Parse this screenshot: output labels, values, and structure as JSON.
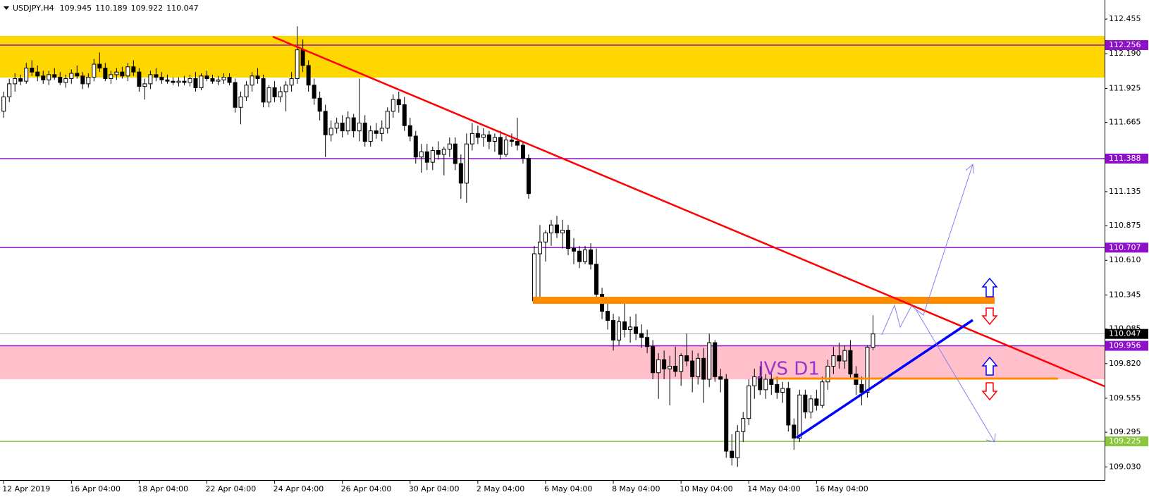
{
  "chart_data": {
    "type": "candlestick",
    "symbol": "USDJPY,H4",
    "ylim": [
      108.929,
      112.601
    ],
    "yticks": [
      {
        "value": 112.455,
        "label": "112.455"
      },
      {
        "value": 112.19,
        "label": "112.190"
      },
      {
        "value": 111.925,
        "label": "111.925"
      },
      {
        "value": 111.665,
        "label": "111.665"
      },
      {
        "value": 111.135,
        "label": "111.135"
      },
      {
        "value": 110.875,
        "label": "110.875"
      },
      {
        "value": 110.61,
        "label": "110.610"
      },
      {
        "value": 110.345,
        "label": "110.345"
      },
      {
        "value": 110.085,
        "label": "110.085"
      },
      {
        "value": 109.82,
        "label": "109.820"
      },
      {
        "value": 109.555,
        "label": "109.555"
      },
      {
        "value": 109.295,
        "label": "109.295"
      },
      {
        "value": 109.03,
        "label": "109.030"
      }
    ],
    "bull_color": "#ffffff",
    "bear_color": "#000000",
    "outline_color": "#000000",
    "levels": [
      {
        "value": 112.256,
        "color": "#8e10c8"
      },
      {
        "value": 111.388,
        "color": "#8e10c8"
      },
      {
        "value": 110.707,
        "color": "#8e10c8"
      },
      {
        "value": 109.956,
        "color": "#8e10c8"
      },
      {
        "value": 109.225,
        "color": "#8cc63f"
      },
      {
        "value": 110.047,
        "color": "#000000",
        "line_color": "#9fb3c8"
      }
    ],
    "annotation": "JVS D1",
    "categories": [
      "12 Apr 2019",
      null,
      null,
      null,
      null,
      null,
      null,
      null,
      null,
      null,
      null,
      null,
      "16 Apr 04:00",
      null,
      null,
      null,
      null,
      null,
      null,
      null,
      null,
      null,
      null,
      null,
      "18 Apr 04:00",
      null,
      null,
      null,
      null,
      null,
      null,
      null,
      null,
      null,
      null,
      null,
      "22 Apr 04:00",
      null,
      null,
      null,
      null,
      null,
      null,
      null,
      null,
      null,
      null,
      null,
      "24 Apr 04:00",
      null,
      null,
      null,
      null,
      null,
      null,
      null,
      null,
      null,
      null,
      null,
      "26 Apr 04:00",
      null,
      null,
      null,
      null,
      null,
      null,
      null,
      null,
      null,
      null,
      null,
      "30 Apr 04:00",
      null,
      null,
      null,
      null,
      null,
      null,
      null,
      null,
      null,
      null,
      null,
      "2 May 04:00",
      null,
      null,
      null,
      null,
      null,
      null,
      null,
      null,
      null,
      null,
      null,
      "6 May 04:00",
      null,
      null,
      null,
      null,
      null,
      null,
      null,
      null,
      null,
      null,
      null,
      "8 May 04:00",
      null,
      null,
      null,
      null,
      null,
      null,
      null,
      null,
      null,
      null,
      null,
      "10 May 04:00",
      null,
      null,
      null,
      null,
      null,
      null,
      null,
      null,
      null,
      null,
      null,
      "14 May 04:00",
      null,
      null,
      null,
      null,
      null,
      null,
      null,
      null,
      null,
      null,
      null,
      "16 May 04:00",
      null,
      null,
      null,
      null,
      null,
      null,
      null,
      null,
      null,
      null
    ],
    "candles": [
      [
        111.75,
        111.9,
        111.7,
        111.86
      ],
      [
        111.86,
        112.0,
        111.82,
        111.96
      ],
      [
        111.96,
        112.04,
        111.9,
        112.0
      ],
      [
        112.0,
        112.03,
        111.95,
        111.98
      ],
      [
        111.98,
        112.12,
        111.96,
        112.08
      ],
      [
        112.08,
        112.14,
        112.02,
        112.05
      ],
      [
        112.05,
        112.1,
        111.98,
        112.02
      ],
      [
        112.02,
        112.06,
        111.96,
        111.99
      ],
      [
        111.99,
        112.06,
        111.95,
        112.03
      ],
      [
        112.03,
        112.08,
        111.99,
        112.01
      ],
      [
        112.01,
        112.05,
        111.95,
        111.97
      ],
      [
        111.97,
        112.03,
        111.93,
        112.0
      ],
      [
        112.0,
        112.07,
        111.96,
        112.04
      ],
      [
        112.04,
        112.1,
        112.0,
        112.02
      ],
      [
        112.02,
        112.05,
        111.92,
        111.96
      ],
      [
        111.96,
        112.04,
        111.93,
        112.01
      ],
      [
        112.01,
        112.15,
        111.98,
        112.11
      ],
      [
        112.11,
        112.2,
        112.05,
        112.08
      ],
      [
        112.08,
        112.12,
        111.98,
        112.0
      ],
      [
        112.0,
        112.06,
        111.96,
        112.03
      ],
      [
        112.03,
        112.08,
        111.99,
        112.05
      ],
      [
        112.05,
        112.09,
        112.0,
        112.02
      ],
      [
        112.02,
        112.12,
        111.98,
        112.09
      ],
      [
        112.09,
        112.14,
        112.02,
        112.05
      ],
      [
        112.05,
        112.08,
        111.9,
        111.94
      ],
      [
        111.94,
        112.0,
        111.84,
        111.96
      ],
      [
        111.96,
        112.06,
        111.92,
        112.03
      ],
      [
        112.03,
        112.08,
        111.98,
        112.01
      ],
      [
        112.01,
        112.05,
        111.96,
        111.99
      ],
      [
        111.99,
        112.03,
        111.96,
        111.98
      ],
      [
        111.98,
        112.01,
        111.95,
        111.97
      ],
      [
        111.97,
        112.01,
        111.94,
        111.98
      ],
      [
        111.98,
        112.02,
        111.95,
        111.97
      ],
      [
        111.97,
        112.03,
        111.94,
        112.0
      ],
      [
        112.0,
        112.05,
        111.9,
        111.93
      ],
      [
        111.93,
        112.04,
        111.91,
        112.02
      ],
      [
        112.02,
        112.06,
        111.98,
        112.0
      ],
      [
        112.0,
        112.03,
        111.96,
        111.98
      ],
      [
        111.98,
        112.02,
        111.95,
        111.99
      ],
      [
        111.99,
        112.04,
        111.96,
        112.01
      ],
      [
        112.01,
        112.04,
        111.95,
        111.97
      ],
      [
        111.97,
        112.0,
        111.74,
        111.78
      ],
      [
        111.78,
        111.9,
        111.65,
        111.86
      ],
      [
        111.86,
        111.98,
        111.83,
        111.95
      ],
      [
        111.95,
        112.05,
        111.9,
        112.02
      ],
      [
        112.02,
        112.08,
        111.96,
        112.0
      ],
      [
        112.0,
        112.03,
        111.78,
        111.82
      ],
      [
        111.82,
        111.95,
        111.78,
        111.93
      ],
      [
        111.93,
        111.98,
        111.82,
        111.86
      ],
      [
        111.86,
        111.94,
        111.82,
        111.9
      ],
      [
        111.9,
        111.98,
        111.75,
        111.95
      ],
      [
        111.95,
        112.05,
        111.9,
        112.0
      ],
      [
        112.0,
        112.4,
        111.96,
        112.22
      ],
      [
        112.22,
        112.3,
        112.05,
        112.1
      ],
      [
        112.1,
        112.14,
        111.9,
        111.95
      ],
      [
        111.95,
        112.0,
        111.8,
        111.85
      ],
      [
        111.85,
        111.9,
        111.68,
        111.75
      ],
      [
        111.75,
        111.8,
        111.4,
        111.57
      ],
      [
        111.57,
        111.68,
        111.52,
        111.62
      ],
      [
        111.62,
        111.7,
        111.58,
        111.66
      ],
      [
        111.66,
        111.72,
        111.55,
        111.6
      ],
      [
        111.6,
        111.75,
        111.57,
        111.7
      ],
      [
        111.7,
        111.73,
        111.55,
        111.6
      ],
      [
        111.6,
        112.0,
        111.52,
        111.66
      ],
      [
        111.66,
        111.72,
        111.48,
        111.52
      ],
      [
        111.52,
        111.64,
        111.48,
        111.6
      ],
      [
        111.6,
        111.66,
        111.54,
        111.58
      ],
      [
        111.58,
        111.68,
        111.52,
        111.62
      ],
      [
        111.62,
        111.78,
        111.58,
        111.75
      ],
      [
        111.75,
        111.88,
        111.7,
        111.84
      ],
      [
        111.84,
        111.9,
        111.74,
        111.8
      ],
      [
        111.8,
        111.86,
        111.6,
        111.64
      ],
      [
        111.64,
        111.7,
        111.52,
        111.56
      ],
      [
        111.56,
        111.6,
        111.35,
        111.4
      ],
      [
        111.4,
        111.5,
        111.28,
        111.44
      ],
      [
        111.44,
        111.5,
        111.3,
        111.36
      ],
      [
        111.36,
        111.48,
        111.3,
        111.45
      ],
      [
        111.45,
        111.52,
        111.38,
        111.42
      ],
      [
        111.42,
        111.48,
        111.26,
        111.46
      ],
      [
        111.46,
        111.55,
        111.4,
        111.5
      ],
      [
        111.5,
        111.55,
        111.3,
        111.35
      ],
      [
        111.35,
        111.42,
        111.08,
        111.2
      ],
      [
        111.2,
        111.58,
        111.05,
        111.5
      ],
      [
        111.5,
        111.66,
        111.45,
        111.58
      ],
      [
        111.58,
        111.64,
        111.5,
        111.55
      ],
      [
        111.55,
        111.62,
        111.48,
        111.57
      ],
      [
        111.57,
        111.6,
        111.46,
        111.52
      ],
      [
        111.52,
        111.58,
        111.44,
        111.55
      ],
      [
        111.55,
        111.6,
        111.38,
        111.42
      ],
      [
        111.42,
        111.56,
        111.4,
        111.53
      ],
      [
        111.53,
        111.58,
        111.48,
        111.52
      ],
      [
        111.52,
        111.7,
        111.45,
        111.49
      ],
      [
        111.49,
        111.52,
        111.35,
        111.39
      ],
      [
        111.39,
        111.42,
        111.08,
        111.12
      ],
      [
        110.3,
        110.72,
        110.28,
        110.66
      ],
      [
        110.66,
        110.88,
        110.3,
        110.75
      ],
      [
        110.75,
        110.84,
        110.6,
        110.82
      ],
      [
        110.82,
        110.92,
        110.72,
        110.88
      ],
      [
        110.88,
        110.95,
        110.78,
        110.82
      ],
      [
        110.82,
        110.92,
        110.7,
        110.84
      ],
      [
        110.84,
        110.88,
        110.65,
        110.7
      ],
      [
        110.7,
        110.78,
        110.58,
        110.68
      ],
      [
        110.68,
        110.72,
        110.55,
        110.6
      ],
      [
        110.6,
        110.72,
        110.58,
        110.69
      ],
      [
        110.69,
        110.74,
        110.54,
        110.58
      ],
      [
        110.58,
        110.7,
        110.3,
        110.35
      ],
      [
        110.35,
        110.4,
        110.16,
        110.22
      ],
      [
        110.22,
        110.3,
        110.08,
        110.15
      ],
      [
        110.15,
        110.2,
        109.92,
        110.0
      ],
      [
        110.0,
        110.18,
        109.96,
        110.14
      ],
      [
        110.14,
        110.3,
        110.02,
        110.08
      ],
      [
        110.08,
        110.18,
        109.98,
        110.1
      ],
      [
        110.1,
        110.2,
        110.0,
        110.05
      ],
      [
        110.05,
        110.12,
        109.94,
        110.02
      ],
      [
        110.02,
        110.08,
        109.9,
        109.95
      ],
      [
        109.95,
        110.0,
        109.7,
        109.75
      ],
      [
        109.75,
        109.9,
        109.55,
        109.85
      ],
      [
        109.85,
        109.92,
        109.7,
        109.78
      ],
      [
        109.78,
        109.88,
        109.5,
        109.8
      ],
      [
        109.8,
        109.95,
        109.72,
        109.76
      ],
      [
        109.76,
        109.9,
        109.65,
        109.88
      ],
      [
        109.88,
        110.05,
        109.8,
        109.84
      ],
      [
        109.84,
        109.92,
        109.6,
        109.72
      ],
      [
        109.72,
        109.9,
        109.66,
        109.86
      ],
      [
        109.86,
        109.94,
        109.52,
        109.7
      ],
      [
        109.7,
        110.05,
        109.64,
        109.98
      ],
      [
        109.98,
        110.0,
        109.68,
        109.72
      ],
      [
        109.72,
        109.78,
        109.6,
        109.7
      ],
      [
        109.7,
        109.74,
        109.1,
        109.15
      ],
      [
        109.15,
        109.28,
        109.04,
        109.1
      ],
      [
        109.1,
        109.35,
        109.03,
        109.3
      ],
      [
        109.3,
        109.45,
        109.22,
        109.4
      ],
      [
        109.4,
        109.7,
        109.35,
        109.65
      ],
      [
        109.65,
        109.78,
        109.55,
        109.72
      ],
      [
        109.72,
        109.8,
        109.58,
        109.62
      ],
      [
        109.62,
        109.74,
        109.55,
        109.7
      ],
      [
        109.7,
        109.76,
        109.58,
        109.66
      ],
      [
        109.66,
        109.72,
        109.55,
        109.6
      ],
      [
        109.6,
        109.68,
        109.52,
        109.63
      ],
      [
        109.63,
        109.68,
        109.3,
        109.35
      ],
      [
        109.35,
        109.4,
        109.16,
        109.25
      ],
      [
        109.25,
        109.62,
        109.22,
        109.58
      ],
      [
        109.58,
        109.62,
        109.4,
        109.45
      ],
      [
        109.45,
        109.58,
        109.4,
        109.55
      ],
      [
        109.55,
        109.62,
        109.46,
        109.5
      ],
      [
        109.5,
        109.72,
        109.48,
        109.68
      ],
      [
        109.68,
        109.85,
        109.62,
        109.8
      ],
      [
        109.8,
        109.95,
        109.74,
        109.88
      ],
      [
        109.88,
        109.98,
        109.78,
        109.84
      ],
      [
        109.84,
        109.96,
        109.78,
        109.92
      ],
      [
        109.92,
        110.0,
        109.7,
        109.74
      ],
      [
        109.74,
        109.8,
        109.58,
        109.66
      ],
      [
        109.66,
        109.72,
        109.5,
        109.6
      ],
      [
        109.6,
        109.96,
        109.56,
        109.945
      ],
      [
        109.945,
        110.189,
        109.922,
        110.047
      ]
    ]
  }
}
